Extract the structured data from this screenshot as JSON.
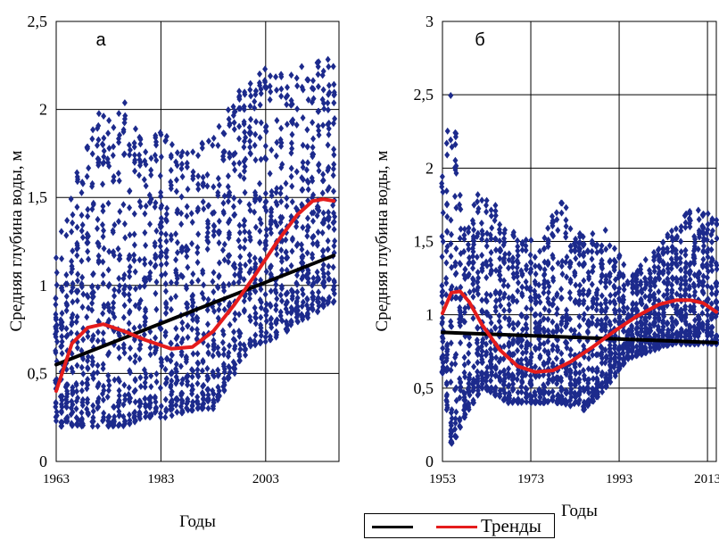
{
  "chart_data": [
    {
      "type": "scatter",
      "panel_label": "а",
      "xlabel": "Годы",
      "ylabel": "Средняя глубина воды, м",
      "xlim": [
        1963,
        2017
      ],
      "ylim": [
        0,
        2.5
      ],
      "yticks": [
        0,
        0.5,
        1,
        1.5,
        2,
        2.5
      ],
      "ytick_labels": [
        "0",
        "0,5",
        "1",
        "1,5",
        "2",
        "2,5"
      ],
      "xticks": [
        1963,
        1983,
        2003
      ],
      "xtick_labels": [
        "1963",
        "1983",
        "2003"
      ],
      "grid": true,
      "marker_color": "#1c2a8c",
      "scatter_profile": [
        {
          "x": 1963,
          "ymin": 0.2,
          "ymax": 1.2
        },
        {
          "x": 1970,
          "ymin": 0.2,
          "ymax": 2.0
        },
        {
          "x": 1976,
          "ymin": 0.2,
          "ymax": 2.05
        },
        {
          "x": 1980,
          "ymin": 0.25,
          "ymax": 1.9
        },
        {
          "x": 1985,
          "ymin": 0.25,
          "ymax": 1.85
        },
        {
          "x": 1990,
          "ymin": 0.3,
          "ymax": 1.8
        },
        {
          "x": 1993,
          "ymin": 0.3,
          "ymax": 1.9
        },
        {
          "x": 2000,
          "ymin": 0.65,
          "ymax": 2.2
        },
        {
          "x": 2005,
          "ymin": 0.7,
          "ymax": 2.25
        },
        {
          "x": 2010,
          "ymin": 0.8,
          "ymax": 2.25
        },
        {
          "x": 2016,
          "ymin": 0.9,
          "ymax": 2.3
        }
      ],
      "series": [
        {
          "color": "#000000",
          "points": [
            [
              1963,
              0.55
            ],
            [
              2016,
              1.17
            ]
          ]
        },
        {
          "color": "#e51c1c",
          "points": [
            [
              1963,
              0.4
            ],
            [
              1966,
              0.67
            ],
            [
              1969,
              0.76
            ],
            [
              1972,
              0.78
            ],
            [
              1976,
              0.74
            ],
            [
              1980,
              0.69
            ],
            [
              1985,
              0.64
            ],
            [
              1989,
              0.65
            ],
            [
              1993,
              0.74
            ],
            [
              1997,
              0.89
            ],
            [
              2001,
              1.06
            ],
            [
              2005,
              1.24
            ],
            [
              2009,
              1.4
            ],
            [
              2012,
              1.48
            ],
            [
              2014,
              1.49
            ],
            [
              2016,
              1.48
            ]
          ]
        }
      ]
    },
    {
      "type": "scatter",
      "panel_label": "б",
      "xlabel": "Годы",
      "ylabel": "Средняя глубина воды, м",
      "xlim": [
        1953,
        2015
      ],
      "ylim": [
        0,
        3
      ],
      "yticks": [
        0,
        0.5,
        1,
        1.5,
        2,
        2.5,
        3
      ],
      "ytick_labels": [
        "0",
        "0,5",
        "1",
        "1,5",
        "2",
        "2,5",
        "3"
      ],
      "xticks": [
        1953,
        1973,
        1993,
        2013
      ],
      "xtick_labels": [
        "1953",
        "1973",
        "1993",
        "2013"
      ],
      "grid": true,
      "marker_color": "#1c2a8c",
      "scatter_profile": [
        {
          "x": 1953,
          "ymin": 0.6,
          "ymax": 2.05
        },
        {
          "x": 1955,
          "ymin": 0.1,
          "ymax": 2.6
        },
        {
          "x": 1958,
          "ymin": 0.3,
          "ymax": 1.6
        },
        {
          "x": 1962,
          "ymin": 0.5,
          "ymax": 1.9
        },
        {
          "x": 1968,
          "ymin": 0.4,
          "ymax": 1.6
        },
        {
          "x": 1975,
          "ymin": 0.4,
          "ymax": 1.5
        },
        {
          "x": 1980,
          "ymin": 0.4,
          "ymax": 1.8
        },
        {
          "x": 1985,
          "ymin": 0.35,
          "ymax": 1.55
        },
        {
          "x": 1990,
          "ymin": 0.5,
          "ymax": 1.6
        },
        {
          "x": 1995,
          "ymin": 0.7,
          "ymax": 1.3
        },
        {
          "x": 2000,
          "ymin": 0.75,
          "ymax": 1.4
        },
        {
          "x": 2005,
          "ymin": 0.8,
          "ymax": 1.6
        },
        {
          "x": 2010,
          "ymin": 0.8,
          "ymax": 1.75
        },
        {
          "x": 2015,
          "ymin": 0.8,
          "ymax": 1.65
        }
      ],
      "series": [
        {
          "color": "#000000",
          "points": [
            [
              1953,
              0.88
            ],
            [
              2015,
              0.81
            ]
          ]
        },
        {
          "color": "#e51c1c",
          "points": [
            [
              1953,
              1.01
            ],
            [
              1955,
              1.15
            ],
            [
              1957,
              1.16
            ],
            [
              1959,
              1.09
            ],
            [
              1962,
              0.93
            ],
            [
              1966,
              0.76
            ],
            [
              1970,
              0.65
            ],
            [
              1974,
              0.61
            ],
            [
              1978,
              0.62
            ],
            [
              1982,
              0.68
            ],
            [
              1987,
              0.78
            ],
            [
              1992,
              0.89
            ],
            [
              1997,
              0.99
            ],
            [
              2002,
              1.07
            ],
            [
              2006,
              1.1
            ],
            [
              2009,
              1.1
            ],
            [
              2012,
              1.08
            ],
            [
              2015,
              1.02
            ]
          ]
        }
      ]
    }
  ],
  "legend": {
    "label": "Тренды",
    "entries": [
      {
        "color": "#000000"
      },
      {
        "color": "#e51c1c"
      }
    ]
  }
}
